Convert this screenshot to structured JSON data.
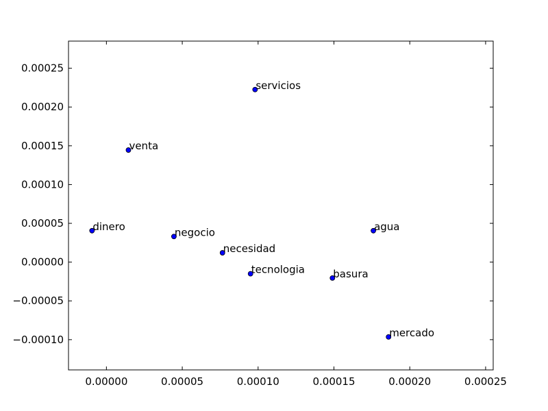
{
  "chart_data": {
    "type": "scatter",
    "title": "",
    "xlabel": "",
    "ylabel": "",
    "xlim": [
      -2.5e-05,
      0.000255
    ],
    "ylim": [
      -0.000139,
      0.000285
    ],
    "xticks": [
      0.0,
      5e-05,
      0.0001,
      0.00015,
      0.0002,
      0.00025
    ],
    "xtick_labels": [
      "0.00000",
      "0.00005",
      "0.00010",
      "0.00015",
      "0.00020",
      "0.00025"
    ],
    "yticks": [
      -0.0001,
      -5e-05,
      0.0,
      5e-05,
      0.0001,
      0.00015,
      0.0002,
      0.00025
    ],
    "ytick_labels": [
      "−0.00010",
      "−0.00005",
      "0.00000",
      "0.00005",
      "0.00010",
      "0.00015",
      "0.00020",
      "0.00025"
    ],
    "grid": false,
    "marker_color": "#0000ff",
    "points": [
      {
        "label": "servicios",
        "x": 9.8e-05,
        "y": 0.0002225
      },
      {
        "label": "venta",
        "x": 1.45e-05,
        "y": 0.0001445
      },
      {
        "label": "dinero",
        "x": -9.5e-06,
        "y": 4.05e-05
      },
      {
        "label": "negocio",
        "x": 4.45e-05,
        "y": 3.3e-05
      },
      {
        "label": "necesidad",
        "x": 7.65e-05,
        "y": 1.2e-05
      },
      {
        "label": "tecnologia",
        "x": 9.5e-05,
        "y": -1.5e-05
      },
      {
        "label": "basura",
        "x": 0.000149,
        "y": -2.05e-05
      },
      {
        "label": "agua",
        "x": 0.000176,
        "y": 4.05e-05
      },
      {
        "label": "mercado",
        "x": 0.000186,
        "y": -9.65e-05
      }
    ]
  }
}
